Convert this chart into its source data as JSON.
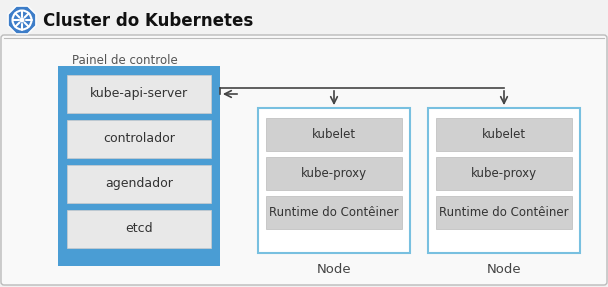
{
  "title": "Cluster do Kubernetes",
  "bg_color": "#f2f2f2",
  "outer_border_color": "#bbbbbb",
  "outer_bg": "#f9f9f9",
  "control_plane_label": "Painel de controle",
  "control_plane_fill": "#4a9dd4",
  "control_plane_items": [
    "kube-api-server",
    "controlador",
    "agendador",
    "etcd"
  ],
  "item_bg": "#e8e8e8",
  "item_border": "#cccccc",
  "node_border_color": "#78c0e0",
  "node_bg": "#ffffff",
  "node_items": [
    "kubelet",
    "kube-proxy",
    "Runtime do Contêiner"
  ],
  "node_label": "Node",
  "node_item_bg": "#d0d0d0",
  "node_item_border": "#bbbbbb",
  "arrow_color": "#444444",
  "text_color": "#333333",
  "title_color": "#111111",
  "logo_color": "#3d7dc8",
  "logo_bg": "#3d7dc8"
}
